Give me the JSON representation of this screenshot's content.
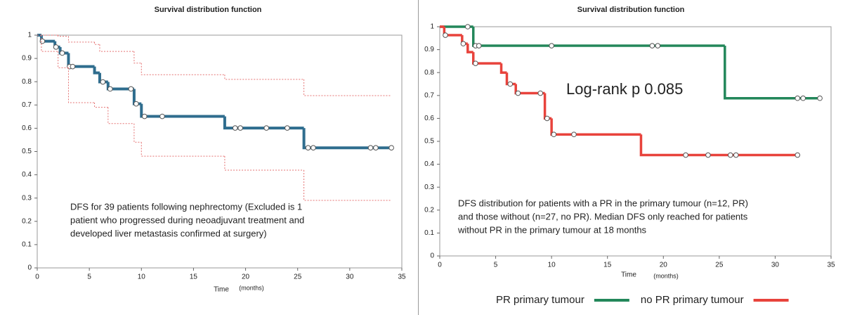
{
  "chart_data": [
    {
      "type": "step",
      "title": "Survival distribution function",
      "xlabel": "Time",
      "xunit": "(months)",
      "xlim": [
        0,
        35
      ],
      "ylim": [
        0,
        1
      ],
      "xticks": [
        0,
        5,
        10,
        15,
        20,
        25,
        30,
        35
      ],
      "yticks": [
        0,
        0.1,
        0.2,
        0.3,
        0.4,
        0.5,
        0.6,
        0.7,
        0.8,
        0.9,
        1
      ],
      "annotation": [
        "DFS for 39 patients following nephrectomy (Excluded is 1",
        "patient who progressed during neoadjuvant treatment and",
        "developed liver metastasis confirmed at surgery)"
      ],
      "series": [
        {
          "color": "#2f6d8e",
          "style": "solid",
          "x": [
            0,
            0.4,
            1.7,
            2.2,
            3,
            5.5,
            6,
            6.8,
            9.3,
            10,
            18,
            25.6,
            34
          ],
          "values": [
            1,
            0.974,
            0.949,
            0.923,
            0.865,
            0.838,
            0.799,
            0.769,
            0.705,
            0.651,
            0.601,
            0.516,
            0.516
          ],
          "censored_x": [
            0.5,
            1.8,
            2.4,
            3.1,
            3.4,
            6.3,
            7,
            9,
            9.5,
            10.3,
            12,
            19,
            19.5,
            22,
            24,
            26,
            26.5,
            32,
            32.5,
            34
          ],
          "censored_values": [
            0.974,
            0.949,
            0.923,
            0.865,
            0.865,
            0.799,
            0.769,
            0.769,
            0.705,
            0.651,
            0.651,
            0.601,
            0.601,
            0.601,
            0.601,
            0.516,
            0.516,
            0.516,
            0.516,
            0.516
          ]
        },
        {
          "color": "#e57373",
          "style": "dotted",
          "x": [
            0,
            2,
            3,
            5.5,
            6,
            9.3,
            10,
            18,
            25.6,
            34
          ],
          "values": [
            1,
            0.995,
            0.97,
            0.96,
            0.93,
            0.88,
            0.83,
            0.81,
            0.74,
            0.74
          ]
        },
        {
          "color": "#e57373",
          "style": "dotted",
          "x": [
            0,
            0.4,
            2,
            3,
            5.5,
            6.8,
            9.3,
            10,
            18,
            25.6,
            34
          ],
          "values": [
            1,
            0.93,
            0.86,
            0.71,
            0.69,
            0.62,
            0.54,
            0.48,
            0.42,
            0.29,
            0.29
          ]
        }
      ]
    },
    {
      "type": "step",
      "title": "Survival distribution function",
      "xlabel": "Time",
      "xunit": "(months)",
      "xlim": [
        0,
        35
      ],
      "ylim": [
        0,
        1
      ],
      "xticks": [
        0,
        5,
        10,
        15,
        20,
        25,
        30,
        35
      ],
      "yticks": [
        0,
        0.1,
        0.2,
        0.3,
        0.4,
        0.5,
        0.6,
        0.7,
        0.8,
        0.9,
        1
      ],
      "stat_label": "Log-rank p 0.085",
      "annotation": [
        "DFS distribution for patients with a PR in the primary tumour (n=12, PR)",
        "and those without (n=27, no PR). Median DFS only reached for patients",
        "without PR in the primary tumour at 18 months"
      ],
      "legend": "bottom",
      "series": [
        {
          "name": "PR primary tumour",
          "color": "#23875a",
          "style": "solid",
          "x": [
            0,
            3,
            25.5,
            34
          ],
          "values": [
            1,
            0.917,
            0.688,
            0.688
          ],
          "censored_x": [
            2.5,
            3.2,
            3.5,
            10,
            19,
            19.5,
            32,
            32.5,
            34
          ],
          "censored_values": [
            1,
            0.917,
            0.917,
            0.917,
            0.917,
            0.917,
            0.688,
            0.688,
            0.688
          ]
        },
        {
          "name": "no PR primary tumour",
          "color": "#e8433c",
          "style": "solid",
          "x": [
            0,
            0.4,
            2,
            2.5,
            3,
            5.5,
            6,
            6.8,
            9.4,
            10,
            18,
            32
          ],
          "values": [
            1,
            0.963,
            0.926,
            0.889,
            0.84,
            0.8,
            0.75,
            0.71,
            0.6,
            0.53,
            0.44,
            0.44
          ],
          "censored_x": [
            0.5,
            2.1,
            3.2,
            6.3,
            7,
            9,
            9.6,
            10.2,
            12,
            22,
            24,
            26,
            26.5,
            32
          ],
          "censored_values": [
            0.963,
            0.926,
            0.84,
            0.75,
            0.71,
            0.71,
            0.6,
            0.53,
            0.53,
            0.44,
            0.44,
            0.44,
            0.44,
            0.44
          ]
        }
      ]
    }
  ]
}
